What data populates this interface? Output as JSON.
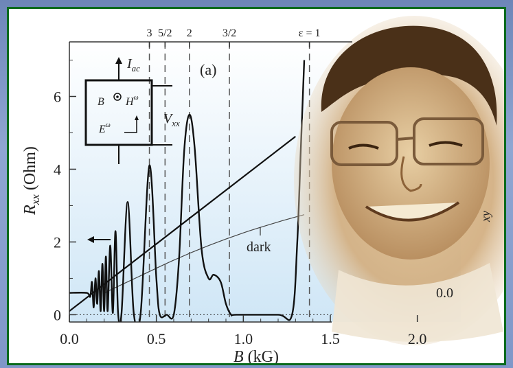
{
  "chart_data": {
    "type": "line",
    "panel_label": "(a)",
    "xlabel": "B (kG)",
    "xlabel_main": "B",
    "xlabel_unit": " (kG)",
    "ylabel_main": "R",
    "ylabel_sub": "xx",
    "ylabel_unit": " (Ohm)",
    "xlim": [
      0,
      2.25
    ],
    "ylim": [
      -0.2,
      7.5
    ],
    "x_ticks": [
      {
        "value": 0.0,
        "label": "0.0"
      },
      {
        "value": 0.5,
        "label": "0.5"
      },
      {
        "value": 1.0,
        "label": "1.0"
      },
      {
        "value": 1.5,
        "label": "1.5"
      },
      {
        "value": 2.0,
        "label": "2.0"
      }
    ],
    "y_ticks": [
      {
        "value": 0,
        "label": "0"
      },
      {
        "value": 2,
        "label": "2"
      },
      {
        "value": 4,
        "label": "4"
      },
      {
        "value": 6,
        "label": "6"
      }
    ],
    "epsilon_lines": [
      {
        "x": 0.46,
        "label": "3"
      },
      {
        "x": 0.55,
        "label": "5/2"
      },
      {
        "x": 0.69,
        "label": "2"
      },
      {
        "x": 0.92,
        "label": "3/2"
      },
      {
        "x": 1.38,
        "label": "ε = 1"
      }
    ],
    "series": [
      {
        "name": "",
        "style": "oscillating",
        "x": [
          0.0,
          0.1,
          0.12,
          0.13,
          0.14,
          0.15,
          0.16,
          0.17,
          0.18,
          0.19,
          0.2,
          0.21,
          0.22,
          0.235,
          0.25,
          0.265,
          0.28,
          0.3,
          0.335,
          0.37,
          0.41,
          0.46,
          0.5,
          0.52,
          0.56,
          0.6,
          0.63,
          0.66,
          0.69,
          0.72,
          0.76,
          0.8,
          0.83,
          0.87,
          0.9,
          0.93,
          0.96,
          1.2,
          1.28,
          1.31,
          1.33,
          1.35
        ],
        "y": [
          0.6,
          0.6,
          0.5,
          0.9,
          0.2,
          1.0,
          0.3,
          1.2,
          0.1,
          1.4,
          0.1,
          1.6,
          0.1,
          1.9,
          0.05,
          2.3,
          0.05,
          0.05,
          3.1,
          0.05,
          0.05,
          4.1,
          1.0,
          0.0,
          0.0,
          0.0,
          1.5,
          4.5,
          5.5,
          4.6,
          1.8,
          1.0,
          1.1,
          0.9,
          0.3,
          0.0,
          0.0,
          0.0,
          0.0,
          2.0,
          4.5,
          7.0
        ]
      },
      {
        "name": "",
        "style": "linear",
        "x": [
          0.0,
          1.3
        ],
        "y": [
          0.1,
          4.9
        ]
      },
      {
        "name": "dark",
        "style": "thin",
        "x": [
          0.2,
          0.4,
          0.6,
          0.8,
          1.0,
          1.2,
          1.35
        ],
        "y": [
          0.6,
          1.05,
          1.5,
          1.9,
          2.25,
          2.55,
          2.75
        ]
      }
    ],
    "annotations": {
      "dark_label": "dark",
      "right_zero_label": "0.0",
      "right_edge_label": "xy"
    },
    "inset": {
      "I_main": "I",
      "I_sub": "ac",
      "B_label": "B",
      "H_main": "H",
      "H_sup": "ω",
      "E_main": "E",
      "E_sup": "ω",
      "V_main": "V",
      "V_sub": "xx"
    }
  },
  "colors": {
    "frame": "#0a6a1c",
    "plot_bg_top": "#ffffff",
    "plot_bg_bottom": "#cfe6f6",
    "portrait_tone": "#d6b78c"
  },
  "portrait": {
    "subject": "portrait photo of a smiling man with glasses"
  }
}
